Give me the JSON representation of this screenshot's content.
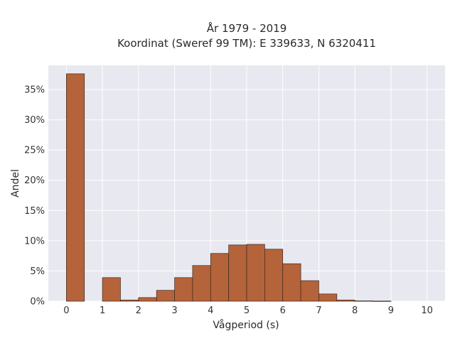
{
  "chart_data": {
    "type": "bar",
    "title_line1": "År 1979 - 2019",
    "title_line2": "Koordinat (Sweref 99 TM): E 339633, N 6320411",
    "xlabel": "Vågperiod (s)",
    "ylabel": "Andel",
    "xlim": [
      -0.5,
      10.5
    ],
    "ylim": [
      0,
      0.39
    ],
    "x_ticks": [
      0,
      1,
      2,
      3,
      4,
      5,
      6,
      7,
      8,
      9,
      10
    ],
    "y_ticks": [
      0,
      0.05,
      0.1,
      0.15,
      0.2,
      0.25,
      0.3,
      0.35
    ],
    "y_tick_labels": [
      "0%",
      "5%",
      "10%",
      "15%",
      "20%",
      "25%",
      "30%",
      "35%"
    ],
    "bin_width": 0.5,
    "bins": [
      {
        "x0": 0.0,
        "value": 0.376
      },
      {
        "x0": 0.5,
        "value": 0.0
      },
      {
        "x0": 1.0,
        "value": 0.039
      },
      {
        "x0": 1.5,
        "value": 0.002
      },
      {
        "x0": 2.0,
        "value": 0.006
      },
      {
        "x0": 2.5,
        "value": 0.018
      },
      {
        "x0": 3.0,
        "value": 0.039
      },
      {
        "x0": 3.5,
        "value": 0.059
      },
      {
        "x0": 4.0,
        "value": 0.079
      },
      {
        "x0": 4.5,
        "value": 0.093
      },
      {
        "x0": 5.0,
        "value": 0.094
      },
      {
        "x0": 5.5,
        "value": 0.086
      },
      {
        "x0": 6.0,
        "value": 0.062
      },
      {
        "x0": 6.5,
        "value": 0.034
      },
      {
        "x0": 7.0,
        "value": 0.012
      },
      {
        "x0": 7.5,
        "value": 0.002
      },
      {
        "x0": 8.0,
        "value": 0.0006
      },
      {
        "x0": 8.5,
        "value": 0.0003
      }
    ],
    "bar_color": "#b5633a",
    "bar_edge_color": "#3a2a20",
    "plot_background": "#e8e8f1",
    "grid": true
  }
}
